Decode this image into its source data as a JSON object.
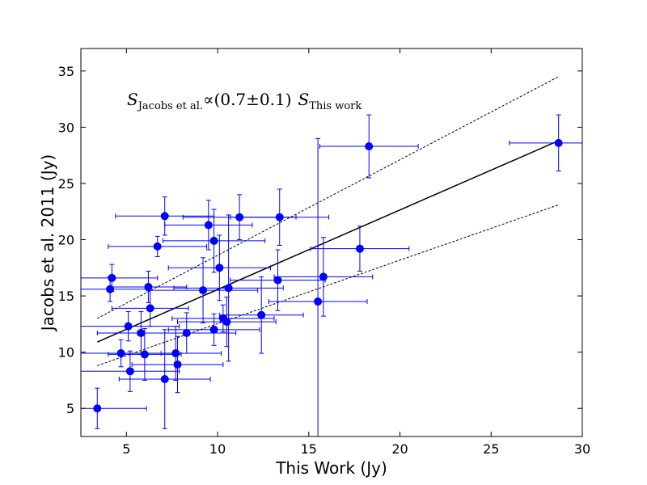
{
  "chart_data": {
    "type": "scatter",
    "xlabel": "This Work (Jy)",
    "ylabel": "Jacobs et al. 2011 (Jy)",
    "xlim": [
      2.5,
      30
    ],
    "ylim": [
      2.5,
      37
    ],
    "xticks": [
      5,
      10,
      15,
      20,
      25,
      30
    ],
    "yticks": [
      5,
      10,
      15,
      20,
      25,
      30,
      35
    ],
    "grid": false,
    "colors": {
      "points": "#0000ff",
      "fit": "#000000"
    },
    "annotation": {
      "main": "S",
      "sub1": "Jacobs et al.",
      "mid": "∝(0.7±0.1)",
      "main2": "S",
      "sub2": "This work"
    },
    "points": [
      {
        "x": 3.4,
        "y": 5.0,
        "xerr": 2.7,
        "yerr": 1.8
      },
      {
        "x": 4.1,
        "y": 15.6,
        "xerr": 2.0,
        "yerr": 1.1
      },
      {
        "x": 4.2,
        "y": 16.6,
        "xerr": 2.5,
        "yerr": 1.2
      },
      {
        "x": 4.7,
        "y": 9.9,
        "xerr": 2.2,
        "yerr": 1.2
      },
      {
        "x": 5.1,
        "y": 12.3,
        "xerr": 2.8,
        "yerr": 1.3
      },
      {
        "x": 5.2,
        "y": 8.3,
        "xerr": 2.7,
        "yerr": 1.8
      },
      {
        "x": 5.8,
        "y": 11.7,
        "xerr": 2.4,
        "yerr": 1.9
      },
      {
        "x": 6.0,
        "y": 9.8,
        "xerr": 2.0,
        "yerr": 2.3
      },
      {
        "x": 6.2,
        "y": 15.8,
        "xerr": 2.1,
        "yerr": 1.4
      },
      {
        "x": 6.3,
        "y": 13.9,
        "xerr": 2.1,
        "yerr": 1.6
      },
      {
        "x": 6.7,
        "y": 19.4,
        "xerr": 2.7,
        "yerr": 0.9
      },
      {
        "x": 7.1,
        "y": 22.1,
        "xerr": 2.7,
        "yerr": 1.7
      },
      {
        "x": 7.1,
        "y": 7.6,
        "xerr": 2.5,
        "yerr": 4.4
      },
      {
        "x": 7.7,
        "y": 9.9,
        "xerr": 2.5,
        "yerr": 2.4
      },
      {
        "x": 7.8,
        "y": 8.9,
        "xerr": 2.5,
        "yerr": 2.5
      },
      {
        "x": 8.3,
        "y": 11.7,
        "xerr": 2.7,
        "yerr": 1.8
      },
      {
        "x": 9.2,
        "y": 15.5,
        "xerr": 3.0,
        "yerr": 2.9
      },
      {
        "x": 9.5,
        "y": 21.3,
        "xerr": 2.4,
        "yerr": 2.2
      },
      {
        "x": 9.8,
        "y": 19.9,
        "xerr": 2.8,
        "yerr": 2.8
      },
      {
        "x": 9.8,
        "y": 12.0,
        "xerr": 2.5,
        "yerr": 1.4
      },
      {
        "x": 10.1,
        "y": 17.5,
        "xerr": 2.8,
        "yerr": 2.9
      },
      {
        "x": 10.3,
        "y": 13.0,
        "xerr": 2.8,
        "yerr": 1.2
      },
      {
        "x": 10.5,
        "y": 12.7,
        "xerr": 2.7,
        "yerr": 2.2
      },
      {
        "x": 10.6,
        "y": 15.7,
        "xerr": 3.0,
        "yerr": 6.5
      },
      {
        "x": 11.2,
        "y": 22.0,
        "xerr": 3.1,
        "yerr": 2.0
      },
      {
        "x": 12.4,
        "y": 13.3,
        "xerr": 2.3,
        "yerr": 3.4
      },
      {
        "x": 13.3,
        "y": 16.4,
        "xerr": 2.6,
        "yerr": 2.7
      },
      {
        "x": 13.4,
        "y": 22.0,
        "xerr": 2.7,
        "yerr": 2.5
      },
      {
        "x": 15.5,
        "y": 14.5,
        "xerr": 2.7,
        "yerr": 14.5
      },
      {
        "x": 15.8,
        "y": 16.7,
        "xerr": 2.7,
        "yerr": 3.5
      },
      {
        "x": 17.8,
        "y": 19.2,
        "xerr": 2.7,
        "yerr": 2.0
      },
      {
        "x": 18.3,
        "y": 28.3,
        "xerr": 2.7,
        "yerr": 2.8
      },
      {
        "x": 28.7,
        "y": 28.6,
        "xerr": 2.7,
        "yerr": 2.5
      }
    ],
    "lines": [
      {
        "style": "solid",
        "x": [
          3.4,
          28.7
        ],
        "y": [
          10.9,
          28.8
        ]
      },
      {
        "style": "dashed",
        "x": [
          3.4,
          28.7
        ],
        "y": [
          13.0,
          34.5
        ]
      },
      {
        "style": "dashed",
        "x": [
          3.4,
          28.7
        ],
        "y": [
          8.8,
          23.1
        ]
      }
    ]
  }
}
